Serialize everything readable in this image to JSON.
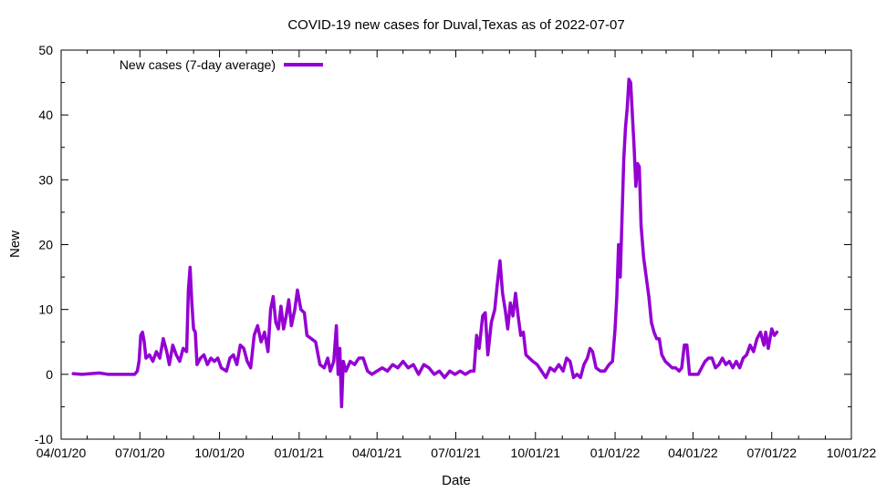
{
  "chart_data": {
    "type": "line",
    "title": "COVID-19 new cases for Duval,Texas as of 2022-07-07",
    "xlabel": "Date",
    "ylabel": "New",
    "xlim": [
      "2020-04-01",
      "2022-10-01"
    ],
    "ylim": [
      -10,
      50
    ],
    "yticks": [
      -10,
      0,
      10,
      20,
      30,
      40,
      50
    ],
    "xticks": [
      {
        "date": "2020-04-01",
        "label": "04/01/20"
      },
      {
        "date": "2020-07-01",
        "label": "07/01/20"
      },
      {
        "date": "2020-10-01",
        "label": "10/01/20"
      },
      {
        "date": "2021-01-01",
        "label": "01/01/21"
      },
      {
        "date": "2021-04-01",
        "label": "04/01/21"
      },
      {
        "date": "2021-07-01",
        "label": "07/01/21"
      },
      {
        "date": "2021-10-01",
        "label": "10/01/21"
      },
      {
        "date": "2022-01-01",
        "label": "01/01/22"
      },
      {
        "date": "2022-04-01",
        "label": "04/01/22"
      },
      {
        "date": "2022-07-01",
        "label": "07/01/22"
      },
      {
        "date": "2022-10-01",
        "label": "10/01/22"
      }
    ],
    "grid": false,
    "legend_position": "top-left",
    "series": [
      {
        "name": "New cases (7-day average)",
        "color": "#9400d3",
        "points": [
          [
            "2020-04-15",
            0.1
          ],
          [
            "2020-04-25",
            0.0
          ],
          [
            "2020-05-05",
            0.1
          ],
          [
            "2020-05-15",
            0.2
          ],
          [
            "2020-05-25",
            0.0
          ],
          [
            "2020-06-05",
            0.0
          ],
          [
            "2020-06-15",
            0.0
          ],
          [
            "2020-06-25",
            0.0
          ],
          [
            "2020-06-28",
            0.5
          ],
          [
            "2020-06-30",
            2.0
          ],
          [
            "2020-07-02",
            6.0
          ],
          [
            "2020-07-04",
            6.5
          ],
          [
            "2020-07-06",
            5.0
          ],
          [
            "2020-07-08",
            2.5
          ],
          [
            "2020-07-12",
            3.0
          ],
          [
            "2020-07-16",
            2.0
          ],
          [
            "2020-07-20",
            3.5
          ],
          [
            "2020-07-24",
            2.5
          ],
          [
            "2020-07-28",
            5.5
          ],
          [
            "2020-08-01",
            3.5
          ],
          [
            "2020-08-04",
            1.5
          ],
          [
            "2020-08-08",
            4.5
          ],
          [
            "2020-08-12",
            3.0
          ],
          [
            "2020-08-16",
            2.0
          ],
          [
            "2020-08-20",
            4.0
          ],
          [
            "2020-08-24",
            3.5
          ],
          [
            "2020-08-26",
            13.0
          ],
          [
            "2020-08-28",
            16.5
          ],
          [
            "2020-08-30",
            11.0
          ],
          [
            "2020-09-01",
            7.0
          ],
          [
            "2020-09-03",
            6.5
          ],
          [
            "2020-09-05",
            1.5
          ],
          [
            "2020-09-09",
            2.5
          ],
          [
            "2020-09-13",
            3.0
          ],
          [
            "2020-09-17",
            1.5
          ],
          [
            "2020-09-21",
            2.5
          ],
          [
            "2020-09-25",
            2.0
          ],
          [
            "2020-09-29",
            2.5
          ],
          [
            "2020-10-03",
            1.0
          ],
          [
            "2020-10-09",
            0.5
          ],
          [
            "2020-10-13",
            2.5
          ],
          [
            "2020-10-17",
            3.0
          ],
          [
            "2020-10-21",
            1.5
          ],
          [
            "2020-10-25",
            4.5
          ],
          [
            "2020-10-29",
            4.0
          ],
          [
            "2020-11-02",
            2.0
          ],
          [
            "2020-11-06",
            1.0
          ],
          [
            "2020-11-10",
            6.0
          ],
          [
            "2020-11-14",
            7.5
          ],
          [
            "2020-11-18",
            5.0
          ],
          [
            "2020-11-22",
            6.5
          ],
          [
            "2020-11-26",
            3.5
          ],
          [
            "2020-11-29",
            10.0
          ],
          [
            "2020-12-02",
            12.0
          ],
          [
            "2020-12-05",
            8.0
          ],
          [
            "2020-12-08",
            7.0
          ],
          [
            "2020-12-11",
            10.5
          ],
          [
            "2020-12-14",
            7.0
          ],
          [
            "2020-12-17",
            9.0
          ],
          [
            "2020-12-20",
            11.5
          ],
          [
            "2020-12-23",
            7.5
          ],
          [
            "2020-12-27",
            10.0
          ],
          [
            "2020-12-30",
            13.0
          ],
          [
            "2021-01-03",
            10.0
          ],
          [
            "2021-01-07",
            9.5
          ],
          [
            "2021-01-10",
            6.0
          ],
          [
            "2021-01-15",
            5.5
          ],
          [
            "2021-01-20",
            5.0
          ],
          [
            "2021-01-25",
            1.5
          ],
          [
            "2021-01-30",
            1.0
          ],
          [
            "2021-02-03",
            2.5
          ],
          [
            "2021-02-06",
            0.5
          ],
          [
            "2021-02-10",
            2.0
          ],
          [
            "2021-02-13",
            7.5
          ],
          [
            "2021-02-15",
            0.0
          ],
          [
            "2021-02-17",
            4.0
          ],
          [
            "2021-02-19",
            -5.0
          ],
          [
            "2021-02-21",
            2.0
          ],
          [
            "2021-02-24",
            0.5
          ],
          [
            "2021-03-01",
            2.0
          ],
          [
            "2021-03-06",
            1.5
          ],
          [
            "2021-03-11",
            2.5
          ],
          [
            "2021-03-16",
            2.5
          ],
          [
            "2021-03-21",
            0.5
          ],
          [
            "2021-03-26",
            0.0
          ],
          [
            "2021-04-01",
            0.5
          ],
          [
            "2021-04-07",
            1.0
          ],
          [
            "2021-04-13",
            0.5
          ],
          [
            "2021-04-19",
            1.5
          ],
          [
            "2021-04-25",
            1.0
          ],
          [
            "2021-05-01",
            2.0
          ],
          [
            "2021-05-07",
            1.0
          ],
          [
            "2021-05-13",
            1.5
          ],
          [
            "2021-05-19",
            0.0
          ],
          [
            "2021-05-25",
            1.5
          ],
          [
            "2021-05-31",
            1.0
          ],
          [
            "2021-06-06",
            0.0
          ],
          [
            "2021-06-12",
            0.5
          ],
          [
            "2021-06-18",
            -0.5
          ],
          [
            "2021-06-24",
            0.5
          ],
          [
            "2021-06-30",
            0.0
          ],
          [
            "2021-07-06",
            0.5
          ],
          [
            "2021-07-12",
            0.0
          ],
          [
            "2021-07-18",
            0.5
          ],
          [
            "2021-07-22",
            0.5
          ],
          [
            "2021-07-25",
            6.0
          ],
          [
            "2021-07-28",
            4.0
          ],
          [
            "2021-08-01",
            9.0
          ],
          [
            "2021-08-04",
            9.5
          ],
          [
            "2021-08-07",
            3.0
          ],
          [
            "2021-08-11",
            8.0
          ],
          [
            "2021-08-15",
            10.0
          ],
          [
            "2021-08-18",
            14.0
          ],
          [
            "2021-08-21",
            17.5
          ],
          [
            "2021-08-24",
            12.5
          ],
          [
            "2021-08-27",
            10.0
          ],
          [
            "2021-08-30",
            7.0
          ],
          [
            "2021-09-02",
            11.0
          ],
          [
            "2021-09-05",
            9.0
          ],
          [
            "2021-09-08",
            12.5
          ],
          [
            "2021-09-11",
            9.0
          ],
          [
            "2021-09-14",
            6.0
          ],
          [
            "2021-09-17",
            6.5
          ],
          [
            "2021-09-20",
            3.0
          ],
          [
            "2021-09-24",
            2.5
          ],
          [
            "2021-09-28",
            2.0
          ],
          [
            "2021-10-03",
            1.5
          ],
          [
            "2021-10-08",
            0.5
          ],
          [
            "2021-10-13",
            -0.5
          ],
          [
            "2021-10-18",
            1.0
          ],
          [
            "2021-10-23",
            0.5
          ],
          [
            "2021-10-28",
            1.5
          ],
          [
            "2021-11-02",
            0.5
          ],
          [
            "2021-11-06",
            2.5
          ],
          [
            "2021-11-10",
            2.0
          ],
          [
            "2021-11-14",
            -0.5
          ],
          [
            "2021-11-18",
            0.0
          ],
          [
            "2021-11-22",
            -0.5
          ],
          [
            "2021-11-26",
            1.5
          ],
          [
            "2021-11-30",
            2.5
          ],
          [
            "2021-12-03",
            4.0
          ],
          [
            "2021-12-06",
            3.5
          ],
          [
            "2021-12-10",
            1.0
          ],
          [
            "2021-12-15",
            0.5
          ],
          [
            "2021-12-20",
            0.5
          ],
          [
            "2021-12-25",
            1.5
          ],
          [
            "2021-12-29",
            2.0
          ],
          [
            "2022-01-01",
            7.0
          ],
          [
            "2022-01-03",
            12.0
          ],
          [
            "2022-01-05",
            20.0
          ],
          [
            "2022-01-07",
            15.0
          ],
          [
            "2022-01-09",
            24.0
          ],
          [
            "2022-01-11",
            33.0
          ],
          [
            "2022-01-13",
            38.0
          ],
          [
            "2022-01-15",
            41.0
          ],
          [
            "2022-01-17",
            45.5
          ],
          [
            "2022-01-19",
            45.0
          ],
          [
            "2022-01-21",
            40.0
          ],
          [
            "2022-01-23",
            35.0
          ],
          [
            "2022-01-25",
            29.0
          ],
          [
            "2022-01-27",
            32.5
          ],
          [
            "2022-01-29",
            32.0
          ],
          [
            "2022-01-31",
            23.0
          ],
          [
            "2022-02-03",
            18.0
          ],
          [
            "2022-02-06",
            15.0
          ],
          [
            "2022-02-09",
            12.0
          ],
          [
            "2022-02-12",
            8.0
          ],
          [
            "2022-02-15",
            6.5
          ],
          [
            "2022-02-18",
            5.5
          ],
          [
            "2022-02-21",
            5.5
          ],
          [
            "2022-02-24",
            3.0
          ],
          [
            "2022-02-28",
            2.0
          ],
          [
            "2022-03-04",
            1.5
          ],
          [
            "2022-03-08",
            1.0
          ],
          [
            "2022-03-12",
            1.0
          ],
          [
            "2022-03-16",
            0.5
          ],
          [
            "2022-03-19",
            1.0
          ],
          [
            "2022-03-22",
            4.5
          ],
          [
            "2022-03-25",
            4.5
          ],
          [
            "2022-03-28",
            0.0
          ],
          [
            "2022-04-02",
            0.0
          ],
          [
            "2022-04-07",
            0.0
          ],
          [
            "2022-04-11",
            1.0
          ],
          [
            "2022-04-15",
            2.0
          ],
          [
            "2022-04-19",
            2.5
          ],
          [
            "2022-04-23",
            2.5
          ],
          [
            "2022-04-27",
            1.0
          ],
          [
            "2022-05-01",
            1.5
          ],
          [
            "2022-05-05",
            2.5
          ],
          [
            "2022-05-09",
            1.5
          ],
          [
            "2022-05-13",
            2.0
          ],
          [
            "2022-05-17",
            1.0
          ],
          [
            "2022-05-21",
            2.0
          ],
          [
            "2022-05-25",
            1.0
          ],
          [
            "2022-05-29",
            2.5
          ],
          [
            "2022-06-02",
            3.0
          ],
          [
            "2022-06-06",
            4.5
          ],
          [
            "2022-06-10",
            3.5
          ],
          [
            "2022-06-14",
            5.5
          ],
          [
            "2022-06-18",
            6.5
          ],
          [
            "2022-06-22",
            4.5
          ],
          [
            "2022-06-24",
            6.5
          ],
          [
            "2022-06-27",
            4.0
          ],
          [
            "2022-07-01",
            7.0
          ],
          [
            "2022-07-04",
            6.0
          ],
          [
            "2022-07-07",
            6.5
          ]
        ]
      }
    ]
  }
}
